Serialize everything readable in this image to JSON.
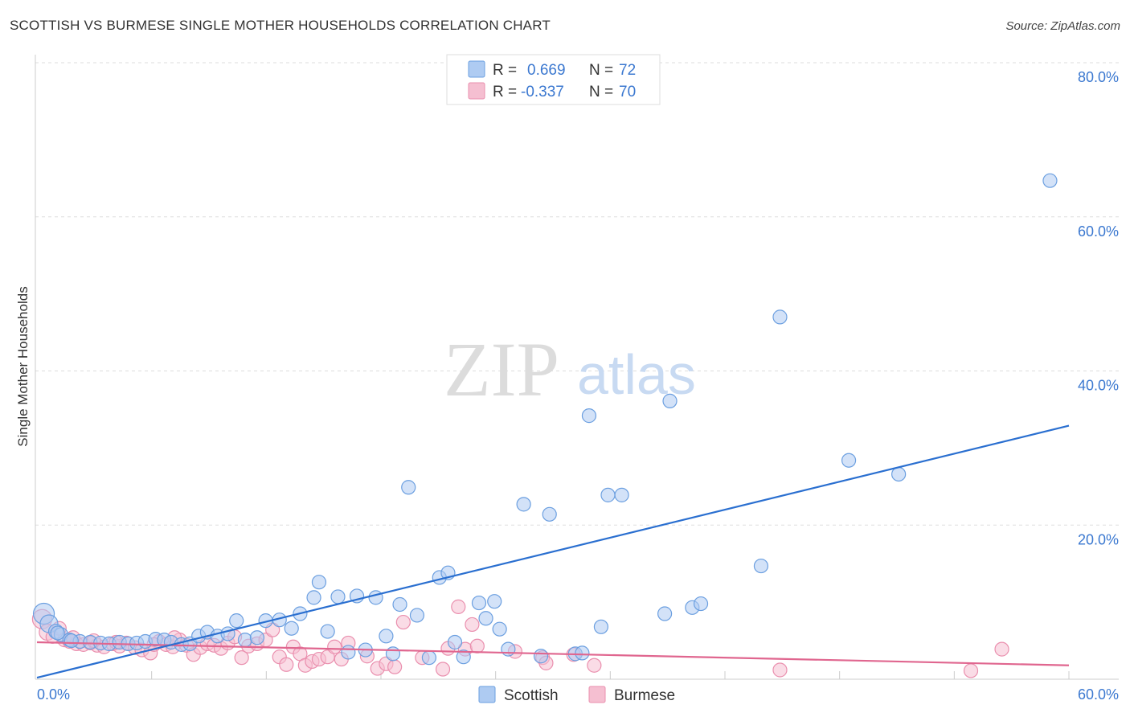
{
  "header": {
    "title": "SCOTTISH VS BURMESE SINGLE MOTHER HOUSEHOLDS CORRELATION CHART",
    "source": "Source: ZipAtlas.com"
  },
  "watermark": {
    "zip": "ZIP",
    "atlas": "atlas"
  },
  "colors": {
    "scottish": "#6b9fe0",
    "scottish_fill": "#aecbf2",
    "scottish_line": "#2a6fd0",
    "burmese": "#ea8fae",
    "burmese_fill": "#f5bfd1",
    "burmese_line": "#e0668f",
    "axis_text": "#3b78d0",
    "grid": "#dddddd"
  },
  "legend": {
    "rows": [
      {
        "r_label": "R =",
        "r_value": "0.669",
        "n_label": "N =",
        "n_value": "72"
      },
      {
        "r_label": "R =",
        "r_value": "-0.337",
        "n_label": "N =",
        "n_value": "70"
      }
    ]
  },
  "bottom_legend": {
    "scottish": "Scottish",
    "burmese": "Burmese"
  },
  "chart_data": {
    "type": "scatter",
    "title": "SCOTTISH VS BURMESE SINGLE MOTHER HOUSEHOLDS CORRELATION CHART",
    "xlabel": "",
    "ylabel": "Single Mother Households",
    "xlim": [
      0,
      60
    ],
    "ylim": [
      0,
      80
    ],
    "x_tick_labels": [
      "0.0%",
      "60.0%"
    ],
    "y_ticks": [
      20,
      40,
      60,
      80
    ],
    "y_tick_labels": [
      "20.0%",
      "40.0%",
      "60.0%",
      "80.0%"
    ],
    "grid": true,
    "legend_position": "top-center",
    "series": [
      {
        "name": "Scottish",
        "r": 0.669,
        "n": 72,
        "trend": {
          "x": [
            0,
            60
          ],
          "y": [
            0.2,
            32.9
          ]
        },
        "points": [
          [
            0.4,
            8.5
          ],
          [
            0.7,
            7.2
          ],
          [
            1.1,
            6.2
          ],
          [
            1.4,
            5.8
          ],
          [
            1.9,
            5.1
          ],
          [
            2.5,
            4.9
          ],
          [
            3.1,
            4.8
          ],
          [
            3.7,
            4.7
          ],
          [
            4.2,
            4.6
          ],
          [
            4.8,
            4.8
          ],
          [
            5.3,
            4.6
          ],
          [
            5.8,
            4.7
          ],
          [
            6.3,
            4.9
          ],
          [
            6.9,
            5.2
          ],
          [
            7.4,
            5.1
          ],
          [
            7.8,
            4.8
          ],
          [
            8.4,
            4.5
          ],
          [
            8.9,
            4.6
          ],
          [
            9.4,
            5.6
          ],
          [
            9.9,
            6.1
          ],
          [
            10.5,
            5.6
          ],
          [
            11.1,
            5.9
          ],
          [
            11.6,
            7.6
          ],
          [
            12.1,
            5.1
          ],
          [
            12.8,
            5.4
          ],
          [
            13.3,
            7.6
          ],
          [
            14.1,
            7.7
          ],
          [
            14.8,
            6.6
          ],
          [
            15.3,
            8.5
          ],
          [
            16.1,
            10.6
          ],
          [
            16.4,
            12.6
          ],
          [
            16.9,
            6.2
          ],
          [
            17.5,
            10.7
          ],
          [
            18.1,
            3.5
          ],
          [
            18.6,
            10.8
          ],
          [
            19.1,
            3.8
          ],
          [
            19.7,
            10.6
          ],
          [
            20.3,
            5.6
          ],
          [
            20.7,
            3.3
          ],
          [
            21.1,
            9.7
          ],
          [
            21.6,
            24.9
          ],
          [
            22.1,
            8.3
          ],
          [
            22.8,
            2.8
          ],
          [
            23.4,
            13.2
          ],
          [
            23.9,
            13.8
          ],
          [
            24.3,
            4.8
          ],
          [
            24.8,
            2.9
          ],
          [
            25.7,
            9.9
          ],
          [
            26.1,
            7.9
          ],
          [
            26.6,
            10.1
          ],
          [
            26.9,
            6.5
          ],
          [
            27.4,
            3.9
          ],
          [
            28.3,
            22.7
          ],
          [
            29.3,
            3.0
          ],
          [
            29.8,
            21.4
          ],
          [
            31.3,
            3.3
          ],
          [
            31.7,
            3.4
          ],
          [
            32.1,
            34.2
          ],
          [
            32.8,
            6.8
          ],
          [
            33.2,
            23.9
          ],
          [
            34.0,
            23.9
          ],
          [
            36.5,
            8.5
          ],
          [
            36.8,
            36.1
          ],
          [
            38.1,
            9.3
          ],
          [
            38.6,
            9.8
          ],
          [
            42.1,
            14.7
          ],
          [
            43.2,
            47.0
          ],
          [
            47.2,
            28.4
          ],
          [
            50.1,
            26.6
          ],
          [
            58.9,
            64.7
          ],
          [
            2.0,
            5.0
          ],
          [
            1.2,
            6.0
          ]
        ]
      },
      {
        "name": "Burmese",
        "r": -0.337,
        "n": 70,
        "trend": {
          "x": [
            0,
            60
          ],
          "y": [
            4.8,
            1.8
          ]
        },
        "points": [
          [
            0.3,
            7.8
          ],
          [
            0.6,
            6.1
          ],
          [
            0.9,
            5.5
          ],
          [
            1.3,
            6.6
          ],
          [
            1.6,
            5.1
          ],
          [
            1.9,
            4.9
          ],
          [
            2.3,
            4.6
          ],
          [
            2.7,
            4.5
          ],
          [
            3.1,
            4.7
          ],
          [
            3.5,
            4.4
          ],
          [
            3.9,
            4.2
          ],
          [
            4.4,
            4.6
          ],
          [
            4.8,
            4.3
          ],
          [
            5.2,
            4.7
          ],
          [
            5.7,
            4.1
          ],
          [
            6.1,
            3.8
          ],
          [
            6.6,
            3.4
          ],
          [
            7.1,
            4.9
          ],
          [
            7.5,
            4.5
          ],
          [
            7.9,
            4.2
          ],
          [
            8.3,
            5.1
          ],
          [
            8.7,
            4.4
          ],
          [
            9.1,
            3.2
          ],
          [
            9.5,
            4.1
          ],
          [
            9.9,
            4.6
          ],
          [
            10.3,
            4.4
          ],
          [
            10.7,
            4.0
          ],
          [
            11.1,
            4.7
          ],
          [
            11.5,
            5.5
          ],
          [
            11.9,
            2.8
          ],
          [
            12.3,
            4.3
          ],
          [
            12.8,
            4.6
          ],
          [
            13.3,
            5.1
          ],
          [
            13.7,
            6.4
          ],
          [
            14.1,
            2.9
          ],
          [
            14.5,
            1.9
          ],
          [
            14.9,
            4.2
          ],
          [
            15.3,
            3.3
          ],
          [
            15.6,
            1.8
          ],
          [
            16.0,
            2.3
          ],
          [
            16.4,
            2.6
          ],
          [
            16.9,
            2.9
          ],
          [
            17.3,
            4.2
          ],
          [
            17.7,
            2.6
          ],
          [
            18.1,
            4.7
          ],
          [
            19.2,
            3.0
          ],
          [
            19.8,
            1.4
          ],
          [
            20.3,
            2.0
          ],
          [
            20.8,
            1.6
          ],
          [
            21.3,
            7.4
          ],
          [
            22.4,
            2.8
          ],
          [
            23.6,
            1.3
          ],
          [
            23.9,
            4.0
          ],
          [
            24.5,
            9.4
          ],
          [
            24.9,
            3.9
          ],
          [
            25.3,
            7.1
          ],
          [
            25.6,
            4.3
          ],
          [
            27.8,
            3.6
          ],
          [
            29.4,
            2.8
          ],
          [
            29.6,
            2.1
          ],
          [
            31.2,
            3.2
          ],
          [
            32.4,
            1.8
          ],
          [
            43.2,
            1.2
          ],
          [
            54.3,
            1.1
          ],
          [
            56.1,
            3.9
          ],
          [
            2.1,
            5.4
          ],
          [
            3.3,
            5.0
          ],
          [
            4.6,
            4.8
          ],
          [
            6.8,
            4.5
          ],
          [
            8.0,
            5.4
          ]
        ]
      }
    ]
  }
}
